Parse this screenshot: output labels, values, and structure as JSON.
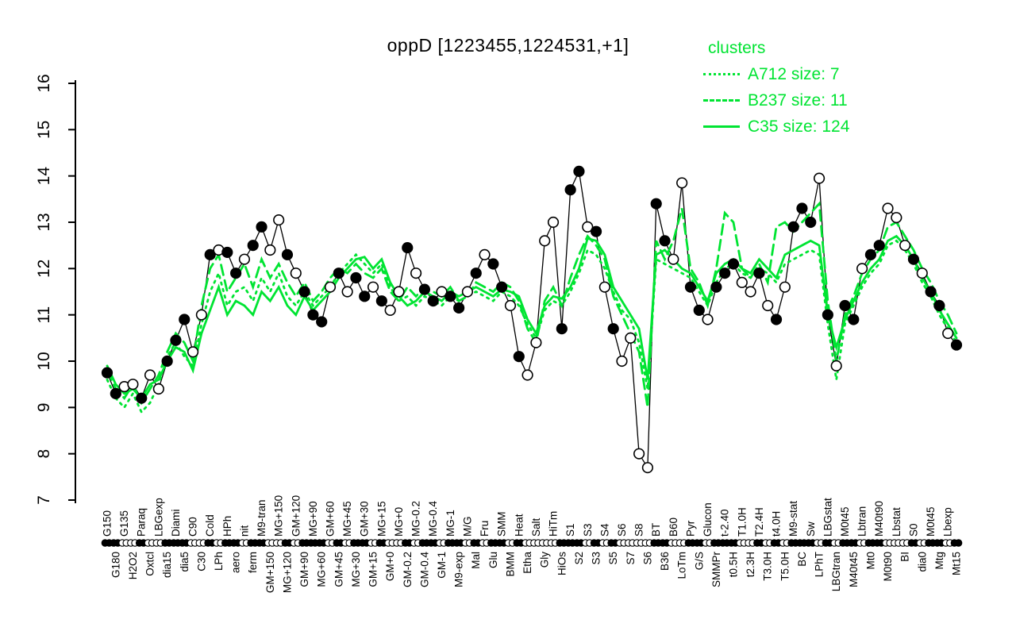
{
  "title": "oppD [1223455,1224531,+1]",
  "legend": {
    "title": "clusters",
    "items": [
      {
        "label": "A712 size: 7",
        "name": "A712",
        "size": 7,
        "line": "dotted"
      },
      {
        "label": "B237 size: 11",
        "name": "B237",
        "size": 11,
        "line": "dashed"
      },
      {
        "label": "C35 size: 124",
        "name": "C35",
        "size": 124,
        "line": "solid"
      }
    ]
  },
  "colors": {
    "cluster_green": "#00E432",
    "gene_line": "#000000",
    "marker_filled": "#000000",
    "marker_open": "#ffffff"
  },
  "chart_data": {
    "type": "line",
    "title": "oppD [1223455,1224531,+1]",
    "xlabel": "",
    "ylabel": "",
    "ylim": [
      7,
      16
    ],
    "yticks": [
      7,
      8,
      9,
      10,
      11,
      12,
      13,
      14,
      15,
      16
    ],
    "legend_position": "top-right",
    "grid": false,
    "categories": [
      "G150",
      "G180",
      "G135",
      "H2O2",
      "Paraq",
      "Oxtcl",
      "LBGexp",
      "dia15",
      "Diami",
      "dia5",
      "C90",
      "C30",
      "Cold",
      "LPh",
      "HPh",
      "aero",
      "nit",
      "ferm",
      "M9-tran",
      "GM+150",
      "MG+150",
      "MG+120",
      "GM+120",
      "GM+90",
      "MG+90",
      "MG+60",
      "GM+60",
      "GM+45",
      "MG+45",
      "MG+30",
      "GM+30",
      "GM+15",
      "MG+15",
      "GM+0",
      "MG+0",
      "GM-0.2",
      "MG-0.2",
      "GM-0.4",
      "MG-0.4",
      "GM-1",
      "MG-1",
      "M9-exp",
      "M/G",
      "Mal",
      "Fru",
      "Glu",
      "SMM",
      "BMM",
      "Heat",
      "Etha",
      "Salt",
      "Gly",
      "HiTm",
      "HiOs",
      "S1",
      "S2",
      "S3",
      "S3",
      "S4",
      "S5",
      "S6",
      "S7",
      "S8",
      "S6",
      "BT",
      "B36",
      "B60",
      "LoTm",
      "Pyr",
      "G/S",
      "Glucon",
      "SMMPr",
      "t-2.40",
      "t0.5H",
      "T1.0H",
      "t2.3H",
      "T2.4H",
      "T3.0H",
      "t4.0H",
      "T5.0H",
      "M9-stat",
      "BC",
      "Sw",
      "LPhT",
      "LBGstat",
      "LBGtran",
      "M0t45",
      "M40t45",
      "Lbtran",
      "Mt0",
      "M40t90",
      "M0t90",
      "Lbstat",
      "BI",
      "S0",
      "dia0",
      "M0t45",
      "Mtg",
      "Lbexp",
      "Mt15"
    ],
    "gene_series": {
      "name": "oppD",
      "values": [
        9.75,
        9.3,
        9.45,
        9.5,
        9.2,
        9.7,
        9.4,
        10.0,
        10.45,
        10.9,
        10.2,
        11.0,
        12.3,
        12.4,
        12.35,
        11.9,
        12.2,
        12.5,
        12.9,
        12.4,
        13.05,
        12.3,
        11.9,
        11.5,
        11.0,
        10.85,
        11.6,
        11.9,
        11.5,
        11.8,
        11.4,
        11.6,
        11.3,
        11.1,
        11.5,
        12.45,
        11.9,
        11.55,
        11.3,
        11.5,
        11.4,
        11.15,
        11.5,
        11.9,
        12.3,
        12.1,
        11.6,
        11.2,
        10.1,
        9.7,
        10.4,
        12.6,
        13.0,
        10.7,
        13.7,
        14.1,
        12.9,
        12.8,
        11.6,
        10.7,
        10.0,
        10.5,
        8.0,
        7.7,
        13.4,
        12.6,
        12.2,
        13.85,
        11.6,
        11.1,
        10.9,
        11.6,
        11.9,
        12.1,
        11.7,
        11.5,
        11.9,
        11.2,
        10.9,
        11.6,
        12.9,
        13.3,
        13.0,
        13.95,
        11.0,
        9.9,
        11.2,
        10.9,
        12.0,
        12.3,
        12.5,
        13.3,
        13.1,
        12.5,
        12.2,
        11.9,
        11.5,
        11.2,
        10.6,
        10.35
      ],
      "marker_filled": [
        1,
        1,
        0,
        0,
        1,
        0,
        0,
        1,
        1,
        1,
        0,
        0,
        1,
        0,
        1,
        1,
        0,
        1,
        1,
        0,
        0,
        1,
        0,
        1,
        1,
        1,
        0,
        1,
        0,
        1,
        1,
        0,
        1,
        0,
        0,
        1,
        0,
        1,
        1,
        0,
        1,
        1,
        0,
        1,
        0,
        1,
        1,
        0,
        1,
        0,
        0,
        0,
        0,
        1,
        1,
        1,
        0,
        1,
        0,
        1,
        0,
        0,
        0,
        0,
        1,
        1,
        0,
        0,
        1,
        1,
        0,
        1,
        1,
        1,
        0,
        0,
        1,
        0,
        1,
        0,
        1,
        1,
        1,
        0,
        1,
        0,
        1,
        1,
        0,
        1,
        1,
        0,
        0,
        0,
        1,
        0,
        1,
        1,
        0,
        1
      ]
    },
    "series": [
      {
        "name": "A712",
        "size": 7,
        "line": "dotted",
        "values": [
          9.6,
          9.2,
          9.0,
          9.3,
          8.9,
          9.1,
          9.5,
          10.1,
          10.4,
          10.1,
          9.9,
          10.8,
          11.5,
          11.9,
          11.2,
          11.5,
          11.6,
          11.3,
          11.8,
          11.5,
          11.9,
          11.4,
          11.2,
          11.5,
          11.2,
          11.4,
          11.6,
          11.9,
          12.1,
          12.3,
          12.1,
          11.9,
          12.1,
          11.6,
          11.3,
          11.4,
          11.2,
          11.4,
          11.3,
          11.2,
          11.4,
          11.3,
          11.4,
          11.5,
          11.4,
          11.3,
          11.5,
          11.4,
          11.2,
          10.8,
          10.5,
          11.1,
          11.3,
          11.2,
          11.5,
          11.9,
          12.4,
          12.3,
          12.0,
          11.5,
          11.1,
          10.9,
          10.4,
          9.4,
          12.2,
          12.1,
          12.0,
          11.9,
          11.8,
          11.5,
          11.2,
          11.7,
          12.0,
          12.1,
          11.9,
          11.8,
          12.0,
          11.9,
          11.7,
          12.1,
          12.2,
          12.3,
          12.4,
          12.3,
          10.8,
          9.6,
          10.8,
          11.2,
          11.6,
          11.9,
          12.1,
          12.5,
          12.6,
          12.4,
          12.1,
          11.7,
          11.4,
          11.0,
          10.7,
          10.4
        ]
      },
      {
        "name": "B237",
        "size": 11,
        "line": "dashed",
        "values": [
          9.8,
          9.4,
          9.2,
          9.5,
          9.1,
          9.4,
          9.7,
          10.2,
          10.6,
          10.4,
          10.0,
          11.2,
          12.0,
          12.3,
          11.5,
          11.8,
          12.1,
          11.6,
          12.2,
          11.8,
          12.1,
          11.7,
          11.4,
          11.7,
          11.3,
          11.5,
          11.8,
          12.0,
          11.9,
          12.1,
          11.9,
          11.8,
          12.0,
          11.5,
          11.3,
          11.6,
          11.4,
          11.6,
          11.5,
          11.4,
          11.6,
          11.3,
          11.4,
          11.7,
          11.6,
          11.5,
          11.7,
          11.6,
          11.3,
          10.7,
          10.4,
          11.3,
          11.6,
          11.2,
          11.8,
          12.3,
          12.7,
          12.5,
          12.2,
          11.4,
          11.0,
          10.6,
          10.2,
          9.0,
          12.6,
          12.2,
          12.6,
          13.3,
          12.0,
          11.7,
          11.2,
          12.0,
          13.2,
          13.0,
          12.0,
          11.8,
          12.1,
          11.7,
          12.9,
          13.0,
          12.8,
          13.0,
          13.2,
          13.4,
          11.3,
          10.0,
          11.0,
          11.4,
          11.9,
          12.2,
          12.4,
          12.9,
          13.0,
          12.7,
          12.4,
          12.0,
          11.7,
          11.3,
          11.0,
          10.6
        ]
      },
      {
        "name": "C35",
        "size": 124,
        "line": "solid",
        "values": [
          9.9,
          9.5,
          9.3,
          9.4,
          9.2,
          9.5,
          9.6,
          10.0,
          10.3,
          10.2,
          9.8,
          10.6,
          11.1,
          11.6,
          11.0,
          11.3,
          11.2,
          11.0,
          11.5,
          11.3,
          11.6,
          11.2,
          11.0,
          11.4,
          11.1,
          11.3,
          11.5,
          11.8,
          12.0,
          12.2,
          12.25,
          12.0,
          12.2,
          11.7,
          11.4,
          11.2,
          11.3,
          11.5,
          11.4,
          11.3,
          11.5,
          11.4,
          11.5,
          11.6,
          11.5,
          11.4,
          11.55,
          11.5,
          11.4,
          10.9,
          10.6,
          11.2,
          11.4,
          11.35,
          11.6,
          12.0,
          12.65,
          12.6,
          12.3,
          11.6,
          11.3,
          11.0,
          10.7,
          9.6,
          12.3,
          12.4,
          12.2,
          12.0,
          11.9,
          11.6,
          11.3,
          11.9,
          12.1,
          12.2,
          12.0,
          11.9,
          12.2,
          12.0,
          11.8,
          12.3,
          12.4,
          12.5,
          12.6,
          12.5,
          11.0,
          10.3,
          10.9,
          11.3,
          11.7,
          12.0,
          12.2,
          12.6,
          12.7,
          12.5,
          12.2,
          11.8,
          11.5,
          11.1,
          10.8,
          10.5
        ]
      }
    ]
  }
}
